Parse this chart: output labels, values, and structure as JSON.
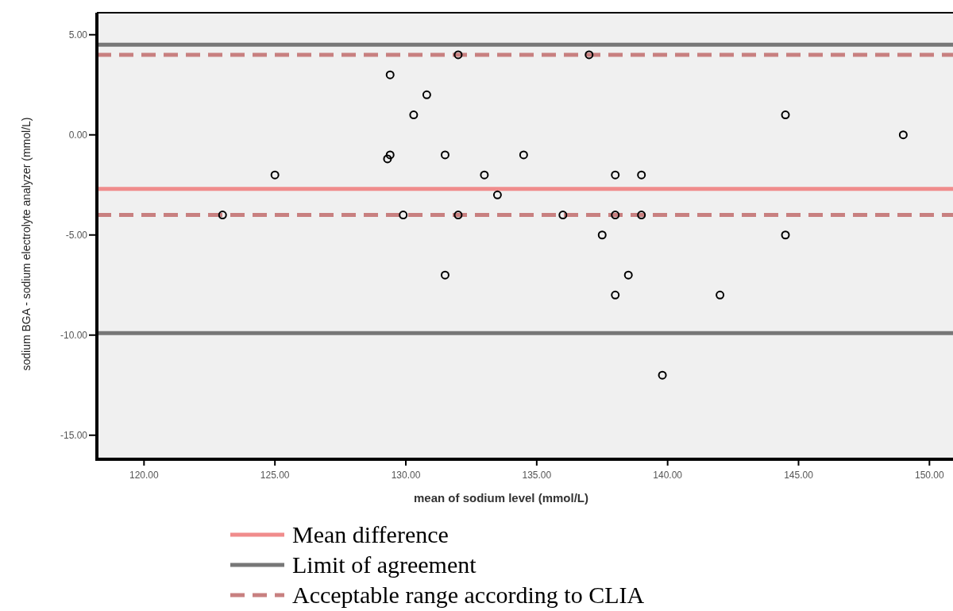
{
  "chart_data": {
    "type": "scatter",
    "xlabel": "mean of sodium level (mmol/L)",
    "ylabel": "sodium BGA - sodium electrolyte analyzer (mmol/L)",
    "x": [
      123,
      125,
      129.4,
      129.4,
      129.3,
      130.3,
      130.8,
      129.9,
      131.5,
      132,
      132,
      131.5,
      133,
      133.5,
      134.5,
      136,
      137,
      137.5,
      138,
      138,
      138.5,
      138,
      139,
      139,
      139.8,
      142,
      144.5,
      144.5,
      149
    ],
    "values": [
      -4,
      -2,
      3,
      -1,
      -1.2,
      1,
      2,
      -4,
      -1,
      4,
      -4,
      -7,
      -2,
      -3,
      -1,
      -4,
      4,
      -5,
      -2,
      -4,
      -7,
      -8,
      -2,
      -4,
      -12,
      -8,
      1,
      -5,
      0
    ],
    "color": "#000000",
    "marker": "circle",
    "xlim": [
      118.2,
      150.9
    ],
    "xticks": [
      {
        "value": 120,
        "label": "120.00"
      },
      {
        "value": 125,
        "label": "125.00"
      },
      {
        "value": 130,
        "label": "130.00"
      },
      {
        "value": 135,
        "label": "135.00"
      },
      {
        "value": 140,
        "label": "140.00"
      },
      {
        "value": 145,
        "label": "145.00"
      },
      {
        "value": 150,
        "label": "150.00"
      }
    ],
    "ylim": [
      -16.2,
      6.1
    ],
    "yticks": [
      {
        "value": -15,
        "label": "-15.00"
      },
      {
        "value": -10,
        "label": "-10.00"
      },
      {
        "value": -5,
        "label": "-5.00"
      },
      {
        "value": 0,
        "label": "0.00"
      },
      {
        "value": 5,
        "label": "5.00"
      }
    ],
    "ref_lines": [
      {
        "axis": "y",
        "value": -2.7,
        "label": "Mean difference",
        "color": "#f08c8c",
        "line_style": "solid"
      },
      {
        "axis": "y",
        "value": 4.5,
        "label": "Limit of agreement",
        "color": "#777777",
        "line_style": "solid"
      },
      {
        "axis": "y",
        "value": -9.9,
        "color": "#777777",
        "line_style": "solid"
      },
      {
        "axis": "y",
        "value": 4,
        "label": "Acceptable range according to CLIA",
        "color": "#c88080",
        "line_style": "dashed"
      },
      {
        "axis": "y",
        "value": -4,
        "color": "#c88080",
        "line_style": "dashed"
      }
    ],
    "grid": false,
    "legend": "bottom"
  }
}
